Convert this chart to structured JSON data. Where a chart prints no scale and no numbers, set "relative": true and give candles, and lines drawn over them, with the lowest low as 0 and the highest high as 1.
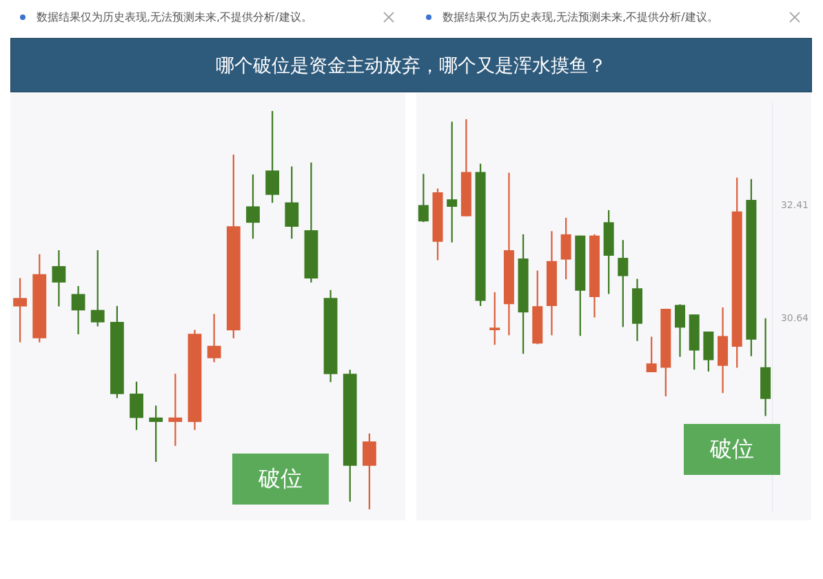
{
  "chart_data": [
    {
      "type": "candlestick",
      "title": "哪个破位是资金主动放弃，哪个又是浑水摸鱼？",
      "relative": true,
      "tick_labels": false,
      "categories": [
        null,
        null,
        null,
        null,
        null,
        null,
        null,
        null,
        null,
        null,
        null,
        null,
        null,
        null,
        null,
        null,
        null,
        null,
        null
      ],
      "ohlc": [
        [
          0.51,
          0.58,
          0.42,
          0.53
        ],
        [
          0.43,
          0.64,
          0.42,
          0.59
        ],
        [
          0.61,
          0.65,
          0.51,
          0.57
        ],
        [
          0.54,
          0.56,
          0.44,
          0.5
        ],
        [
          0.5,
          0.65,
          0.46,
          0.47
        ],
        [
          0.47,
          0.51,
          0.28,
          0.29
        ],
        [
          0.29,
          0.32,
          0.2,
          0.23
        ],
        [
          0.23,
          0.26,
          0.12,
          0.22
        ],
        [
          0.22,
          0.34,
          0.16,
          0.23
        ],
        [
          0.22,
          0.45,
          0.2,
          0.44
        ],
        [
          0.38,
          0.49,
          0.37,
          0.41
        ],
        [
          0.45,
          0.89,
          0.43,
          0.71
        ],
        [
          0.76,
          0.84,
          0.68,
          0.72
        ],
        [
          0.85,
          1,
          0.77,
          0.79
        ],
        [
          0.77,
          0.86,
          0.68,
          0.71
        ],
        [
          0.7,
          0.87,
          0.57,
          0.58
        ],
        [
          0.53,
          0.55,
          0.32,
          0.34
        ],
        [
          0.34,
          0.35,
          0.02,
          0.11
        ],
        [
          0.11,
          0.19,
          0,
          0.17
        ]
      ],
      "colors": [
        "#db5f3a",
        "#db5f3a",
        "#3f7b23",
        "#3f7b23",
        "#3f7b23",
        "#3f7b23",
        "#3f7b23",
        "#3f7b23",
        "#db5f3a",
        "#db5f3a",
        "#db5f3a",
        "#db5f3a",
        "#3f7b23",
        "#3f7b23",
        "#3f7b23",
        "#3f7b23",
        "#3f7b23",
        "#3f7b23",
        "#db5f3a"
      ],
      "annotations": [
        "数据结果仅为历史表现,无法预测未来,不提供分析/建议。",
        "破位"
      ]
    },
    {
      "type": "candlestick",
      "tick_labels": "y",
      "ylim": [
        27.6,
        34.05
      ],
      "yticks": [
        32.41,
        30.64
      ],
      "categories": [
        null,
        null,
        null,
        null,
        null,
        null,
        null,
        null,
        null,
        null,
        null,
        null,
        null,
        null,
        null,
        null,
        null,
        null,
        null,
        null,
        null,
        null,
        null,
        null,
        null
      ],
      "ohlc": [
        [
          32.42,
          32.91,
          32.16,
          32.17
        ],
        [
          31.85,
          32.68,
          31.56,
          32.62
        ],
        [
          32.51,
          33.73,
          31.84,
          32.4
        ],
        [
          32.25,
          33.77,
          32.25,
          32.94
        ],
        [
          32.94,
          33.07,
          30.84,
          30.92
        ],
        [
          30.46,
          31.05,
          30.23,
          30.49
        ],
        [
          30.87,
          32.93,
          30.38,
          31.71
        ],
        [
          31.58,
          31.96,
          30.09,
          30.74
        ],
        [
          30.25,
          31.39,
          30.24,
          30.83
        ],
        [
          30.84,
          32.01,
          30.38,
          31.54
        ],
        [
          31.57,
          32.22,
          31.26,
          31.96
        ],
        [
          31.94,
          31.94,
          30.37,
          31.08
        ],
        [
          30.98,
          31.96,
          30.66,
          31.94
        ],
        [
          32.15,
          32.34,
          31.03,
          31.63
        ],
        [
          31.59,
          31.87,
          30.51,
          31.31
        ],
        [
          31.11,
          31.26,
          30.29,
          30.56
        ],
        [
          29.8,
          30.35,
          29.8,
          29.93
        ],
        [
          29.87,
          30.79,
          29.42,
          30.79
        ],
        [
          30.85,
          30.86,
          30.04,
          30.5
        ],
        [
          30.7,
          30.7,
          29.84,
          30.14
        ],
        [
          30.43,
          30.43,
          29.81,
          29.99
        ],
        [
          29.9,
          30.81,
          29.47,
          30.36
        ],
        [
          30.2,
          32.85,
          29.87,
          32.32
        ],
        [
          32.5,
          32.83,
          30.05,
          30.31
        ],
        [
          29.87,
          30.64,
          29.11,
          29.38
        ]
      ],
      "colors": [
        "#3f7b23",
        "#db5f3a",
        "#3f7b23",
        "#db5f3a",
        "#3f7b23",
        "#db5f3a",
        "#db5f3a",
        "#3f7b23",
        "#db5f3a",
        "#db5f3a",
        "#db5f3a",
        "#3f7b23",
        "#db5f3a",
        "#3f7b23",
        "#3f7b23",
        "#3f7b23",
        "#db5f3a",
        "#db5f3a",
        "#3f7b23",
        "#3f7b23",
        "#3f7b23",
        "#db5f3a",
        "#db5f3a",
        "#3f7b23",
        "#3f7b23"
      ],
      "annotations": [
        "数据结果仅为历史表现,无法预测未来,不提供分析/建议。",
        "破位"
      ]
    }
  ]
}
